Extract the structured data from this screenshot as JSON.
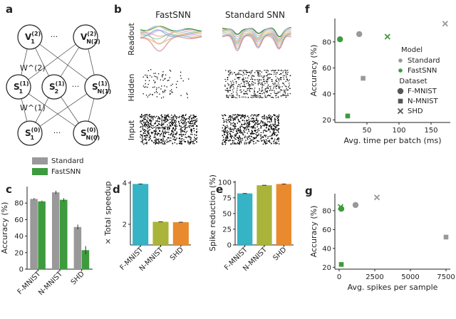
{
  "colors": {
    "standard": "#999999",
    "fastsnn": "#3d9b3d",
    "teal": "#36b3c4",
    "olive": "#aab43a",
    "orange": "#e98a2e",
    "axis": "#222222"
  },
  "panels": {
    "a": {
      "label": "a",
      "nodes": {
        "top": [
          "V_1^(2)",
          "V_N(2)^(2)"
        ],
        "hidden": [
          "S_1^(1)",
          "S_2^(1)",
          "S_N(1)^(1)"
        ],
        "input": [
          "S_1^(0)",
          "S_N(0)^(0)"
        ]
      },
      "weights": [
        "W^(2)",
        "W^(1)"
      ]
    },
    "b": {
      "label": "b",
      "col_titles": [
        "FastSNN",
        "Standard SNN"
      ],
      "row_labels": [
        "Readout",
        "Hidden",
        "Input"
      ]
    },
    "c": {
      "label": "c"
    },
    "d": {
      "label": "d"
    },
    "e": {
      "label": "e"
    },
    "f": {
      "label": "f"
    },
    "g": {
      "label": "g"
    }
  },
  "chart_data": [
    {
      "panel": "c",
      "type": "bar",
      "categories": [
        "F-MNIST",
        "N-MNIST",
        "SHD"
      ],
      "series": [
        {
          "name": "Standard",
          "values": [
            85,
            93,
            51
          ],
          "errors": [
            1,
            2,
            3
          ]
        },
        {
          "name": "FastSNN",
          "values": [
            82,
            84,
            23
          ],
          "errors": [
            1,
            2,
            5
          ]
        }
      ],
      "ylabel": "Accuracy (%)",
      "ylim": [
        0,
        100
      ],
      "yticks": [
        "0",
        "20",
        "40",
        "60",
        "80"
      ],
      "legend": "top-right"
    },
    {
      "panel": "d",
      "type": "bar",
      "categories": [
        "F-MNIST",
        "N-MNIST",
        "SHD"
      ],
      "values": [
        3.95,
        2.12,
        2.1
      ],
      "ylabel": "× Total speedup",
      "ylim": [
        1,
        4.1
      ],
      "yticks": [
        "2",
        "4"
      ]
    },
    {
      "panel": "e",
      "type": "bar",
      "categories": [
        "F-MNIST",
        "N-MNIST",
        "SHD"
      ],
      "values": [
        82,
        95,
        97
      ],
      "ylabel": "Spike reduction (%)",
      "ylim": [
        0,
        102
      ],
      "yticks": [
        "0",
        "25",
        "50",
        "75",
        "100"
      ]
    },
    {
      "panel": "f",
      "type": "scatter",
      "xlabel": "Avg. time per batch (ms)",
      "ylabel": "Accuracy (%)",
      "xlim": [
        0,
        180
      ],
      "ylim": [
        18,
        98
      ],
      "xticks": [
        "50",
        "100",
        "150"
      ],
      "yticks": [
        "20",
        "40",
        "60",
        "80"
      ],
      "legend_title_model": "Model",
      "legend_title_dataset": "Dataset",
      "legend_models": [
        "Standard",
        "FastSNN"
      ],
      "legend_datasets": [
        "F-MNIST",
        "N-MNIST",
        "SHD"
      ],
      "points": [
        {
          "model": "Standard",
          "dataset": "F-MNIST",
          "x": 38,
          "y": 86
        },
        {
          "model": "Standard",
          "dataset": "N-MNIST",
          "x": 44,
          "y": 52
        },
        {
          "model": "Standard",
          "dataset": "SHD",
          "x": 172,
          "y": 94
        },
        {
          "model": "FastSNN",
          "dataset": "F-MNIST",
          "x": 8,
          "y": 82
        },
        {
          "model": "FastSNN",
          "dataset": "N-MNIST",
          "x": 20,
          "y": 23
        },
        {
          "model": "FastSNN",
          "dataset": "SHD",
          "x": 82,
          "y": 84
        }
      ]
    },
    {
      "panel": "g",
      "type": "scatter",
      "xlabel": "Avg. spikes per sample",
      "ylabel": "Accuracy (%)",
      "xlim": [
        -300,
        7800
      ],
      "ylim": [
        18,
        98
      ],
      "xticks": [
        "0",
        "2500",
        "5000",
        "7500"
      ],
      "yticks": [
        "20",
        "40",
        "60",
        "80"
      ],
      "points": [
        {
          "model": "Standard",
          "dataset": "F-MNIST",
          "x": 1150,
          "y": 86
        },
        {
          "model": "Standard",
          "dataset": "N-MNIST",
          "x": 7500,
          "y": 52
        },
        {
          "model": "Standard",
          "dataset": "SHD",
          "x": 2650,
          "y": 94
        },
        {
          "model": "FastSNN",
          "dataset": "F-MNIST",
          "x": 150,
          "y": 82
        },
        {
          "model": "FastSNN",
          "dataset": "N-MNIST",
          "x": 150,
          "y": 23
        },
        {
          "model": "FastSNN",
          "dataset": "SHD",
          "x": 100,
          "y": 84
        }
      ]
    }
  ]
}
